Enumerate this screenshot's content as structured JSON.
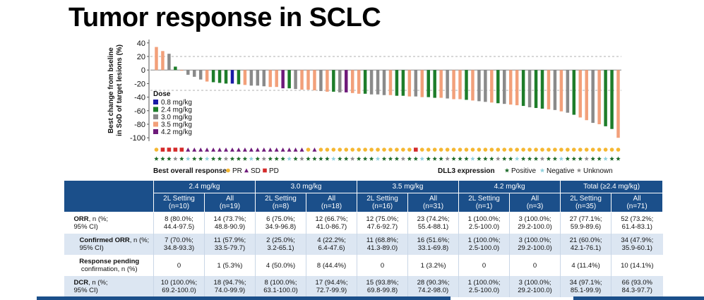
{
  "title": "Tumor response in SCLC",
  "chart_data": {
    "type": "bar",
    "ylabel": "Best change from bseline in SoD of target lesions (%)",
    "ylim": [
      -105,
      45
    ],
    "yticks": [
      "40",
      "20",
      "0",
      "-20",
      "-40",
      "-60",
      "-80",
      "-100"
    ],
    "ytick_values": [
      40,
      20,
      0,
      -20,
      -40,
      -60,
      -80,
      -100
    ],
    "reference_lines": [
      20,
      -30
    ],
    "dose_legend_title": "Dose",
    "dose_legend": [
      {
        "label": "0.8 mg/kg",
        "color": "#1a1aa6"
      },
      {
        "label": "2.4 mg/kg",
        "color": "#1e7d2a"
      },
      {
        "label": "3.0 mg/kg",
        "color": "#8a8a8a"
      },
      {
        "label": "3.5 mg/kg",
        "color": "#f2a07a"
      },
      {
        "label": "4.2 mg/kg",
        "color": "#6e1a7a"
      }
    ],
    "dose_colors": {
      "0.8": "#1a1aa6",
      "2.4": "#1e7d2a",
      "3.0": "#8a8a8a",
      "3.5": "#f2a07a",
      "4.2": "#6e1a7a"
    },
    "values": [
      34,
      28,
      24,
      5,
      -1,
      -7,
      -10,
      -14,
      -17,
      -18,
      -19,
      -20,
      -20,
      -21,
      -22,
      -23,
      -23,
      -24,
      -25,
      -25,
      -27,
      -27,
      -28,
      -29,
      -29,
      -30,
      -31,
      -32,
      -32,
      -33,
      -33,
      -34,
      -35,
      -35,
      -36,
      -36,
      -37,
      -37,
      -38,
      -38,
      -39,
      -39,
      -40,
      -40,
      -41,
      -41,
      -42,
      -43,
      -43,
      -44,
      -45,
      -46,
      -47,
      -48,
      -49,
      -50,
      -51,
      -52,
      -53,
      -55,
      -56,
      -57,
      -58,
      -59,
      -61,
      -63,
      -66,
      -70,
      -74,
      -78,
      -80,
      -83,
      -87,
      -100
    ],
    "doses": [
      "3.5",
      "3.5",
      "3.0",
      "2.4",
      "3.5",
      "3.0",
      "3.0",
      "3.0",
      "3.5",
      "2.4",
      "2.4",
      "2.4",
      "0.8",
      "2.4",
      "3.5",
      "3.0",
      "3.0",
      "3.0",
      "3.5",
      "3.5",
      "4.2",
      "2.4",
      "3.0",
      "3.5",
      "3.5",
      "3.5",
      "3.0",
      "3.5",
      "2.4",
      "3.0",
      "4.2",
      "3.5",
      "3.5",
      "2.4",
      "3.0",
      "3.0",
      "3.0",
      "3.5",
      "2.4",
      "2.4",
      "3.5",
      "3.0",
      "3.5",
      "2.4",
      "2.4",
      "3.5",
      "3.0",
      "3.5",
      "3.5",
      "2.4",
      "3.5",
      "3.0",
      "3.0",
      "3.5",
      "2.4",
      "3.0",
      "3.5",
      "3.5",
      "2.4",
      "3.0",
      "2.4",
      "2.4",
      "3.5",
      "3.0",
      "3.5",
      "3.0",
      "2.4",
      "3.5",
      "3.5",
      "3.0",
      "3.5",
      "2.4",
      "2.4",
      "3.5"
    ],
    "response": [
      "PR",
      "PD",
      "PD",
      "PD",
      "PD",
      "SD",
      "SD",
      "SD",
      "SD",
      "SD",
      "SD",
      "SD",
      "SD",
      "SD",
      "SD",
      "SD",
      "SD",
      "SD",
      "SD",
      "SD",
      "SD",
      "SD",
      "SD",
      "SD",
      "PR",
      "SD",
      "PR",
      "PR",
      "PR",
      "PR",
      "PR",
      "PR",
      "PR",
      "PR",
      "PR",
      "PR",
      "PR",
      "PR",
      "PR",
      "PR",
      "PR",
      "PD",
      "PR",
      "PR",
      "PR",
      "PR",
      "PR",
      "PR",
      "PR",
      "PR",
      "PR",
      "PR",
      "PR",
      "PR",
      "PR",
      "PR",
      "PR",
      "PR",
      "PR",
      "PR",
      "PR",
      "PR",
      "PR",
      "PR",
      "PR",
      "PR",
      "PR",
      "PR",
      "PR",
      "PR",
      "PR",
      "PR",
      "PR",
      "PR"
    ],
    "dll3": [
      "P",
      "P",
      "P",
      "U",
      "P",
      "N",
      "P",
      "P",
      "N",
      "P",
      "P",
      "U",
      "P",
      "P",
      "P",
      "N",
      "P",
      "U",
      "P",
      "P",
      "P",
      "N",
      "P",
      "U",
      "P",
      "P",
      "P",
      "P",
      "N",
      "P",
      "P",
      "U",
      "P",
      "P",
      "P",
      "N",
      "P",
      "P",
      "P",
      "U",
      "P",
      "P",
      "N",
      "P",
      "P",
      "P",
      "U",
      "P",
      "P",
      "P",
      "N",
      "P",
      "P",
      "P",
      "U",
      "P",
      "P",
      "N",
      "P",
      "P",
      "P",
      "U",
      "P",
      "P",
      "N",
      "P",
      "P",
      "P",
      "U",
      "P",
      "P",
      "N",
      "P",
      "P"
    ],
    "response_colors": {
      "PR": "#f5b731",
      "SD": "#6e1a7a",
      "PD": "#d42a2a"
    },
    "dll3_colors": {
      "P": "#1e6b2a",
      "N": "#8fd0dc",
      "U": "#8a8a8a"
    },
    "response_legend_title": "Best overall response",
    "response_legend": [
      {
        "label": "PR"
      },
      {
        "label": "SD"
      },
      {
        "label": "PD"
      }
    ],
    "dll3_legend_title": "DLL3 expression",
    "dll3_legend": [
      {
        "label": "Positive"
      },
      {
        "label": "Negative"
      },
      {
        "label": "Unknown"
      }
    ]
  },
  "table": {
    "groups": [
      "2.4 mg/kg",
      "3.0 mg/kg",
      "3.5 mg/kg",
      "4.2 mg/kg",
      "Total (≥2.4 mg/kg)"
    ],
    "subheads": [
      [
        "2L Setting",
        "(n=10)"
      ],
      [
        "All",
        "(n=19)"
      ],
      [
        "2L Setting",
        "(n=8)"
      ],
      [
        "All",
        "(n=18)"
      ],
      [
        "2L Setting",
        "(n=16)"
      ],
      [
        "All",
        "(n=31)"
      ],
      [
        "2L Setting",
        "(n=1)"
      ],
      [
        "All",
        "(n=3)"
      ],
      [
        "2L Setting",
        "(n=35)"
      ],
      [
        "All",
        "(n=71)"
      ]
    ],
    "rows": [
      {
        "label_bold": "ORR",
        "label_rest": ", n (%;",
        "label_2": "95% CI)",
        "cells": [
          [
            "8 (80.0%;",
            "44.4-97.5)"
          ],
          [
            "14 (73.7%;",
            "48.8-90.9)"
          ],
          [
            "6 (75.0%;",
            "34.9-96.8)"
          ],
          [
            "12 (66.7%;",
            "41.0-86.7)"
          ],
          [
            "12 (75.0%;",
            "47.6-92.7)"
          ],
          [
            "23 (74.2%;",
            "55.4-88.1)"
          ],
          [
            "1 (100.0%;",
            "2.5-100.0)"
          ],
          [
            "3 (100.0%;",
            "29.2-100.0)"
          ],
          [
            "27 (77.1%;",
            "59.9-89.6)"
          ],
          [
            "52 (73.2%;",
            "61.4-83.1)"
          ]
        ]
      },
      {
        "label_bold": "Confirmed ORR",
        "label_rest": ", n (%;",
        "label_2": "95% CI)",
        "cells": [
          [
            "7 (70.0%;",
            "34.8-93.3)"
          ],
          [
            "11 (57.9%;",
            "33.5-79.7)"
          ],
          [
            "2 (25.0%;",
            "3.2-65.1)"
          ],
          [
            "4 (22.2%;",
            "6.4-47.6)"
          ],
          [
            "11 (68.8%;",
            "41.3-89.0)"
          ],
          [
            "16 (51.6%;",
            "33.1-69.8)"
          ],
          [
            "1 (100.0%;",
            "2.5-100.0)"
          ],
          [
            "3 (100.0%;",
            "29.2-100.0)"
          ],
          [
            "21 (60.0%;",
            "42.1-76.1)"
          ],
          [
            "34 (47.9%;",
            "35.9-60.1)"
          ]
        ]
      },
      {
        "label_bold": "Response pending",
        "label_rest": "",
        "label_2": "confirmation, n (%)",
        "cells": [
          [
            "0",
            ""
          ],
          [
            "1 (5.3%)",
            ""
          ],
          [
            "4 (50.0%)",
            ""
          ],
          [
            "8 (44.4%)",
            ""
          ],
          [
            "0",
            ""
          ],
          [
            "1 (3.2%)",
            ""
          ],
          [
            "0",
            ""
          ],
          [
            "0",
            ""
          ],
          [
            "4 (11.4%)",
            ""
          ],
          [
            "10 (14.1%)",
            ""
          ]
        ]
      },
      {
        "label_bold": "DCR",
        "label_rest": ", n (%;",
        "label_2": "95% CI)",
        "cells": [
          [
            "10 (100.0%;",
            "69.2-100.0)"
          ],
          [
            "18 (94.7%;",
            "74.0-99.9)"
          ],
          [
            "8 (100.0%;",
            "63.1-100.0)"
          ],
          [
            "17 (94.4%;",
            "72.7-99.9)"
          ],
          [
            "15 (93.8%;",
            "69.8-99.8)"
          ],
          [
            "28 (90.3%;",
            "74.2-98.0)"
          ],
          [
            "1 (100.0%;",
            "2.5-100.0)"
          ],
          [
            "3 (100.0%;",
            "29.2-100.0)"
          ],
          [
            "34 (97.1%;",
            "85.1-99.9)"
          ],
          [
            "66 (93.0%",
            "84.3-97.7)"
          ]
        ]
      }
    ]
  }
}
